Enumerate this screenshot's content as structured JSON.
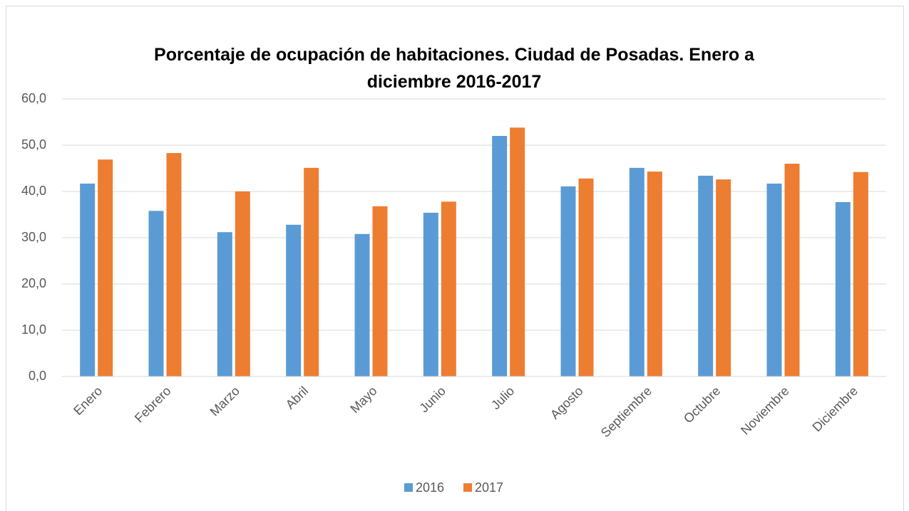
{
  "chart_data": {
    "type": "bar",
    "title": "Porcentaje de ocupación de habitaciones. Ciudad de Posadas. Enero a diciembre 2016-2017",
    "categories": [
      "Enero",
      "Febrero",
      "Marzo",
      "Abril",
      "Mayo",
      "Junio",
      "Julio",
      "Agosto",
      "Septiembre",
      "Octubre",
      "Noviembre",
      "Diciembre"
    ],
    "series": [
      {
        "name": "2016",
        "color": "#5b9bd5",
        "values": [
          41.7,
          35.8,
          31.2,
          32.8,
          30.8,
          35.4,
          52.0,
          41.1,
          45.1,
          43.4,
          41.7,
          37.7
        ]
      },
      {
        "name": "2017",
        "color": "#ed7d31",
        "values": [
          46.9,
          48.3,
          40.0,
          45.1,
          36.8,
          37.8,
          53.8,
          42.8,
          44.3,
          42.6,
          46.0,
          44.2
        ]
      }
    ],
    "ylim": [
      0,
      60
    ],
    "yticks": [
      {
        "value": 0,
        "label": "0,0"
      },
      {
        "value": 10,
        "label": "10,0"
      },
      {
        "value": 20,
        "label": "20,0"
      },
      {
        "value": 30,
        "label": "30,0"
      },
      {
        "value": 40,
        "label": "40,0"
      },
      {
        "value": 50,
        "label": "50,0"
      },
      {
        "value": 60,
        "label": "60,0"
      }
    ],
    "grid": true,
    "legend": "bottom"
  }
}
